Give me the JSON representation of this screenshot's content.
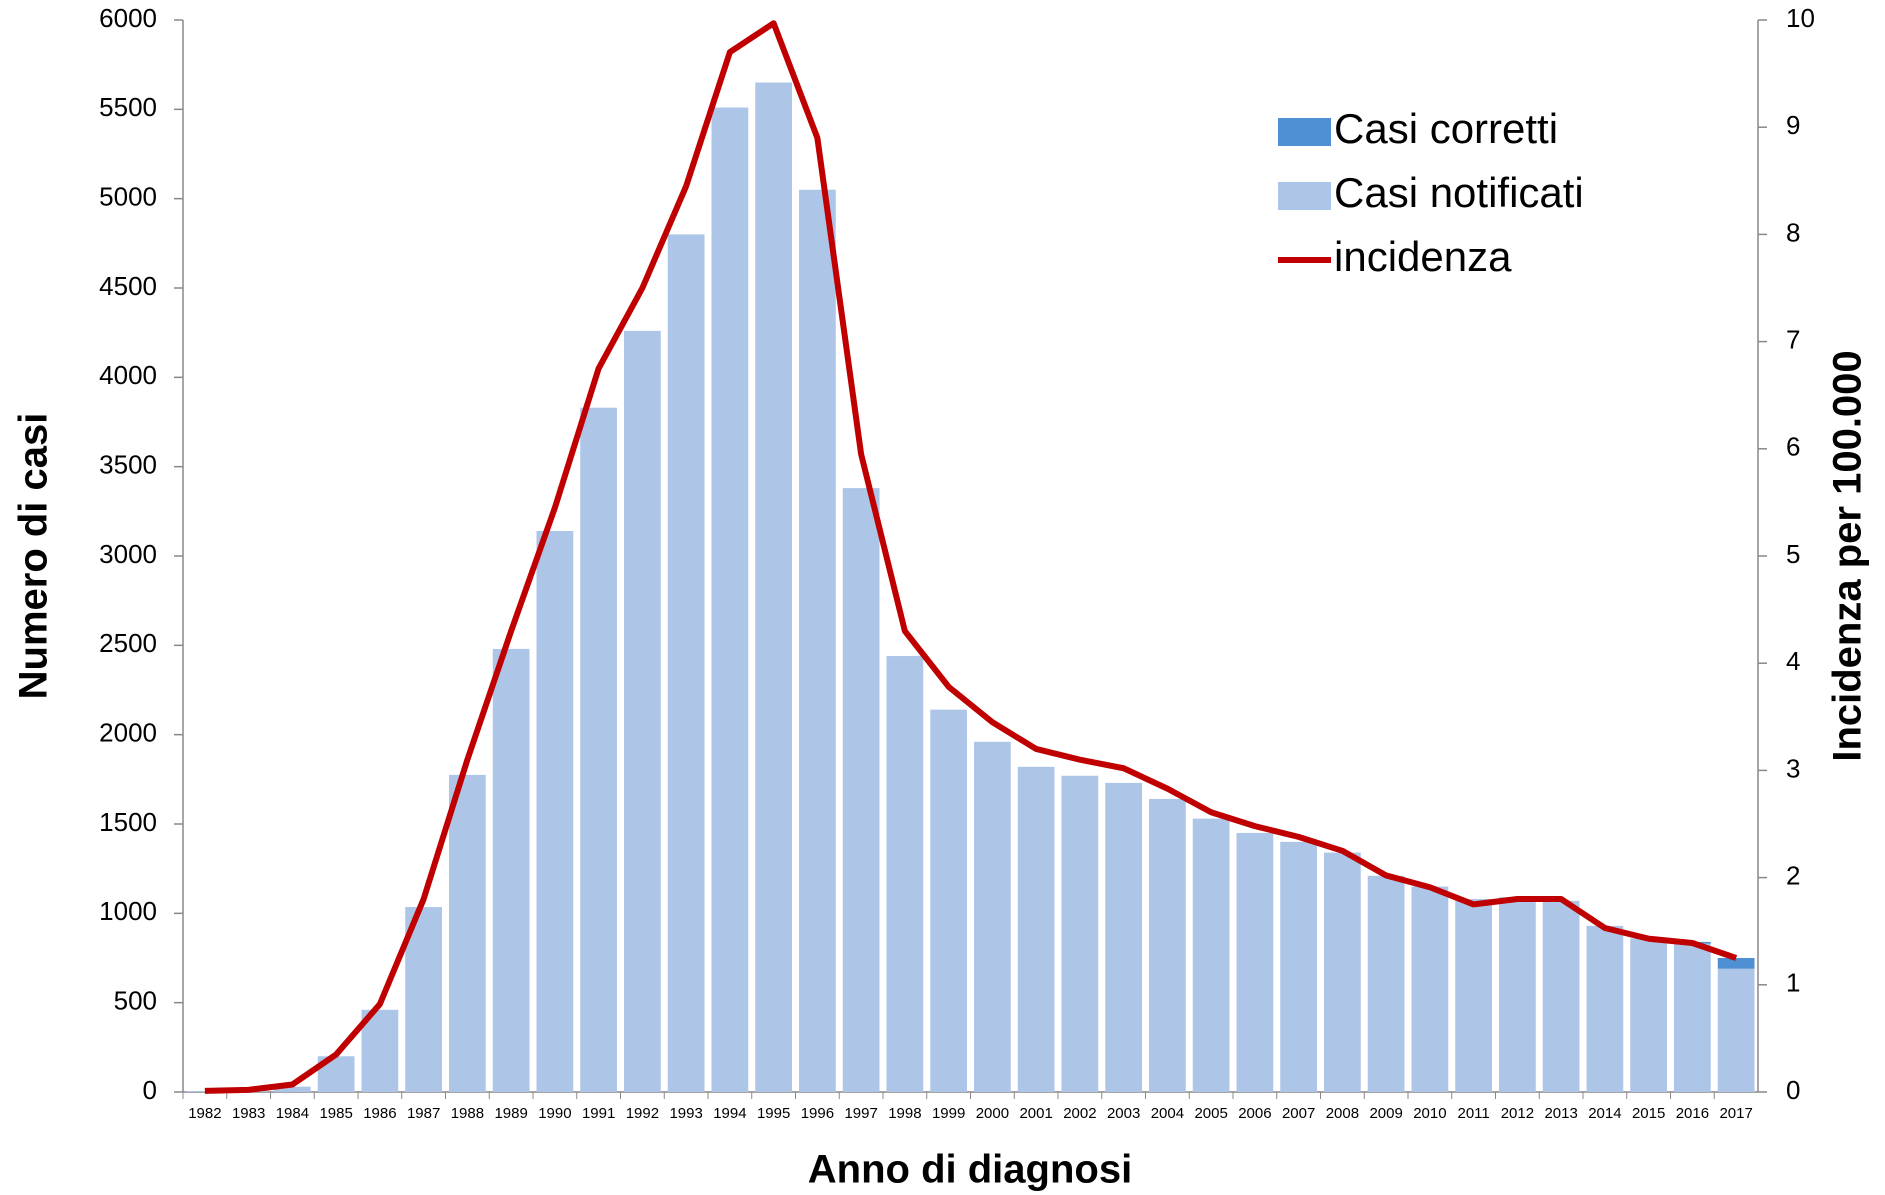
{
  "chart_data": {
    "type": "bar",
    "xlabel": "Anno di diagnosi",
    "ylabel": "Numero di casi",
    "y2label": "Incidenza per 100.000",
    "categories": [
      "1982",
      "1983",
      "1984",
      "1985",
      "1986",
      "1987",
      "1988",
      "1989",
      "1990",
      "1991",
      "1992",
      "1993",
      "1994",
      "1995",
      "1996",
      "1997",
      "1998",
      "1999",
      "2000",
      "2001",
      "2002",
      "2003",
      "2004",
      "2005",
      "2006",
      "2007",
      "2008",
      "2009",
      "2010",
      "2011",
      "2012",
      "2013",
      "2014",
      "2015",
      "2016",
      "2017"
    ],
    "series": [
      {
        "name": "Casi notificati",
        "type": "bar",
        "color": "#adc5e7",
        "values": [
          5,
          10,
          30,
          200,
          460,
          1035,
          1775,
          2480,
          3140,
          3830,
          4260,
          4800,
          5510,
          5650,
          5050,
          3380,
          2440,
          2140,
          1960,
          1820,
          1770,
          1730,
          1640,
          1530,
          1450,
          1400,
          1340,
          1210,
          1150,
          1080,
          1090,
          1070,
          930,
          860,
          830,
          690
        ]
      },
      {
        "name": "Casi corretti",
        "type": "bar",
        "color": "#4f8fd3",
        "values": [
          0,
          0,
          0,
          0,
          0,
          0,
          0,
          0,
          0,
          0,
          0,
          0,
          0,
          0,
          0,
          0,
          0,
          0,
          0,
          0,
          0,
          0,
          0,
          0,
          0,
          0,
          0,
          0,
          0,
          0,
          0,
          0,
          0,
          0,
          10,
          60
        ]
      },
      {
        "name": "incidenza",
        "type": "line",
        "color": "#c00000",
        "axis": "y2",
        "values": [
          0.01,
          0.02,
          0.07,
          0.35,
          0.82,
          1.8,
          3.1,
          4.3,
          5.45,
          6.75,
          7.5,
          8.45,
          9.7,
          9.97,
          8.9,
          5.95,
          4.3,
          3.78,
          3.45,
          3.2,
          3.1,
          3.02,
          2.83,
          2.61,
          2.48,
          2.38,
          2.25,
          2.02,
          1.91,
          1.75,
          1.8,
          1.8,
          1.53,
          1.43,
          1.39,
          1.25
        ]
      }
    ],
    "ylim": [
      0,
      6000
    ],
    "yticks": [
      0,
      500,
      1000,
      1500,
      2000,
      2500,
      3000,
      3500,
      4000,
      4500,
      5000,
      5500,
      6000
    ],
    "y2lim": [
      0,
      10
    ],
    "y2ticks": [
      0,
      1,
      2,
      3,
      4,
      5,
      6,
      7,
      8,
      9,
      10
    ],
    "stacked": true,
    "grid": false,
    "legend": "top-right"
  }
}
